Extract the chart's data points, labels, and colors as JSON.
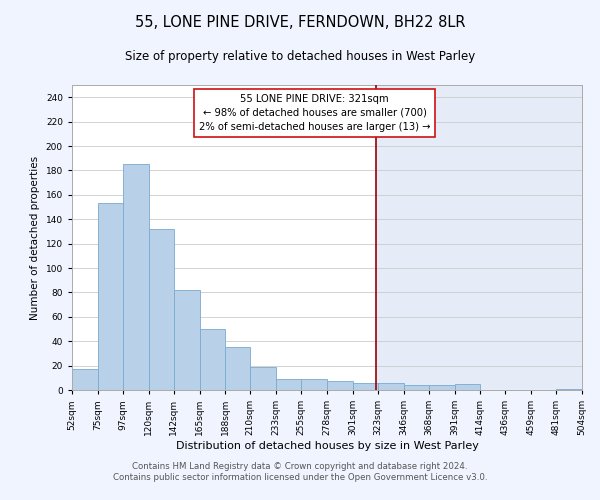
{
  "title": "55, LONE PINE DRIVE, FERNDOWN, BH22 8LR",
  "subtitle": "Size of property relative to detached houses in West Parley",
  "xlabel": "Distribution of detached houses by size in West Parley",
  "ylabel": "Number of detached properties",
  "bin_edges": [
    52,
    75,
    97,
    120,
    142,
    165,
    188,
    210,
    233,
    255,
    278,
    301,
    323,
    346,
    368,
    391,
    414,
    436,
    459,
    481,
    504
  ],
  "bin_labels": [
    "52sqm",
    "75sqm",
    "97sqm",
    "120sqm",
    "142sqm",
    "165sqm",
    "188sqm",
    "210sqm",
    "233sqm",
    "255sqm",
    "278sqm",
    "301sqm",
    "323sqm",
    "346sqm",
    "368sqm",
    "391sqm",
    "414sqm",
    "436sqm",
    "459sqm",
    "481sqm",
    "504sqm"
  ],
  "counts": [
    17,
    153,
    185,
    132,
    82,
    50,
    35,
    19,
    9,
    9,
    7,
    6,
    6,
    4,
    4,
    5,
    0,
    0,
    0,
    1
  ],
  "bar_color": "#b8d0e8",
  "bar_edge_color": "#7aaad0",
  "bg_color": "#f0f4ff",
  "plot_bg_color": "#ffffff",
  "right_bg_color": "#e6ecf7",
  "vline_x": 321,
  "vline_color": "#990000",
  "annotation_text": "55 LONE PINE DRIVE: 321sqm\n← 98% of detached houses are smaller (700)\n2% of semi-detached houses are larger (13) →",
  "ylim": [
    0,
    250
  ],
  "yticks": [
    0,
    20,
    40,
    60,
    80,
    100,
    120,
    140,
    160,
    180,
    200,
    220,
    240
  ],
  "footer_line1": "Contains HM Land Registry data © Crown copyright and database right 2024.",
  "footer_line2": "Contains public sector information licensed under the Open Government Licence v3.0.",
  "title_fontsize": 10.5,
  "subtitle_fontsize": 8.5,
  "xlabel_fontsize": 8,
  "ylabel_fontsize": 7.5,
  "tick_fontsize": 6.5,
  "annotation_fontsize": 7.2,
  "footer_fontsize": 6.2
}
